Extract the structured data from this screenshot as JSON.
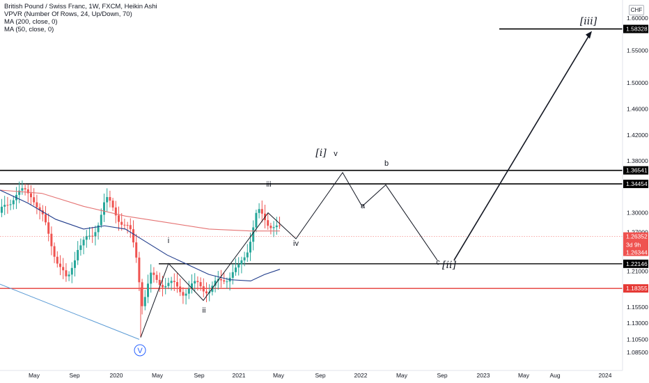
{
  "legend": {
    "line1": "British Pound / Swiss Franc, 1W, FXCM, Heikin Ashi",
    "line2": "VPVR (Number Of Rows, 24, Up/Down, 70)",
    "line3": "MA (200, close, 0)",
    "line4": "MA (50, close, 0)"
  },
  "currency": "CHF",
  "chart_data": {
    "type": "candlestick",
    "symbol": "GBPCHF",
    "ylim": [
      1.07,
      1.615
    ],
    "y_ticks": [
      "1.60000",
      "1.55000",
      "1.50000",
      "1.46000",
      "1.42000",
      "1.38000",
      "1.30000",
      "1.27000",
      "1.21000",
      "1.15500",
      "1.13000",
      "1.10500",
      "1.08500"
    ],
    "x_ticks": [
      "May",
      "Sep",
      "2020",
      "May",
      "Sep",
      "2021",
      "May",
      "Sep",
      "2022",
      "May",
      "Sep",
      "2023",
      "May",
      "Aug",
      "2024"
    ],
    "horizontal_levels": [
      {
        "value": 1.58328,
        "label": "1.58328",
        "color": "#000000"
      },
      {
        "value": 1.36541,
        "label": "1.36541",
        "color": "#000000"
      },
      {
        "value": 1.34454,
        "label": "1.34454",
        "color": "#000000"
      },
      {
        "value": 1.22146,
        "label": "1.22146",
        "color": "#000000"
      },
      {
        "value": 1.18355,
        "label": "1.18355",
        "color": "#e53935"
      }
    ],
    "price_tags": [
      {
        "value": 1.26352,
        "label": "1.26352",
        "color": "#ef5350"
      },
      {
        "value": 1.26344,
        "label": "1.26344",
        "color": "#ef5350"
      }
    ],
    "countdown": "3d 9h",
    "ma200_color": "#e57373",
    "ma50_color": "#1e3a8a",
    "trendline_color": "#5b9bd5",
    "wave_labels": [
      {
        "text": "V",
        "style": "circle"
      },
      {
        "text": "i",
        "style": "small"
      },
      {
        "text": "ii",
        "style": "small"
      },
      {
        "text": "iii",
        "style": "small"
      },
      {
        "text": "iv",
        "style": "small"
      },
      {
        "text": "v",
        "style": "small"
      },
      {
        "text": "[i]",
        "style": "big"
      },
      {
        "text": "a",
        "style": "small"
      },
      {
        "text": "b",
        "style": "small"
      },
      {
        "text": "c",
        "style": "small"
      },
      {
        "text": "[ii]",
        "style": "big"
      },
      {
        "text": "[iii]",
        "style": "big"
      }
    ]
  }
}
